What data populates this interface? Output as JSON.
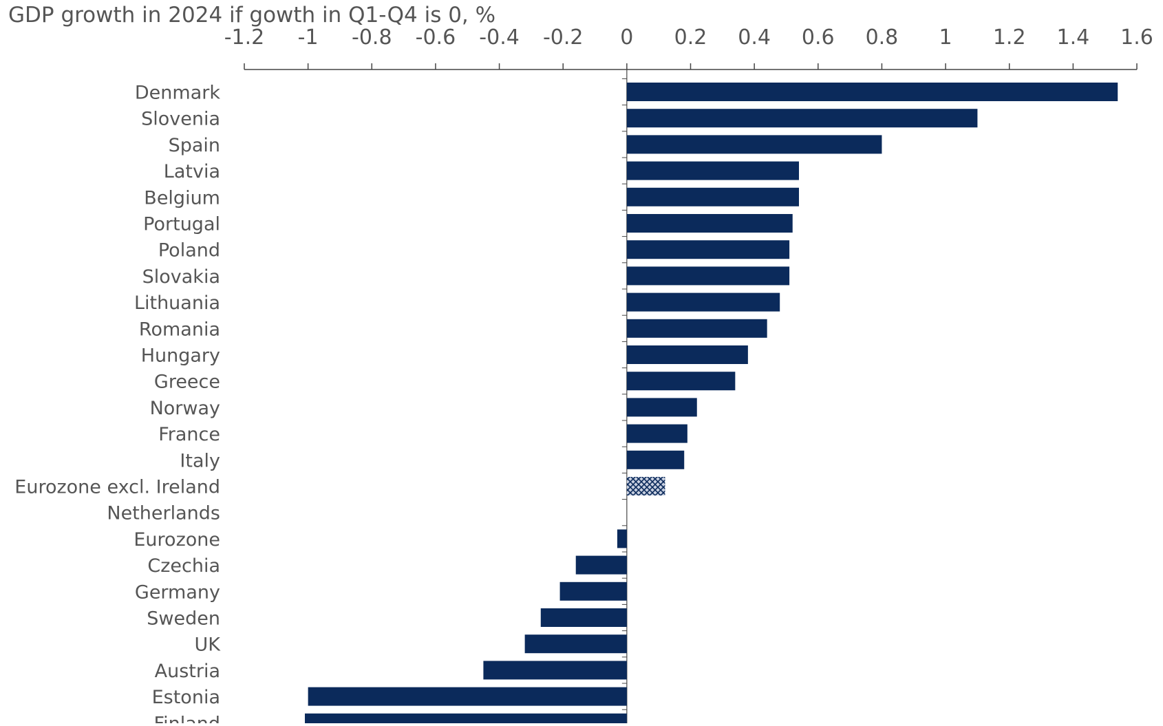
{
  "chart_data": {
    "type": "bar",
    "orientation": "horizontal",
    "title": "GDP growth in 2024 if gowth in Q1-Q4 is 0, %",
    "xlabel": "",
    "ylabel": "",
    "xlim": [
      -1.2,
      1.6
    ],
    "x_ticks": [
      "-1.2",
      "-1",
      "-0.8",
      "-0.6",
      "-0.4",
      "-0.2",
      "0",
      "0.2",
      "0.4",
      "0.6",
      "0.8",
      "1",
      "1.2",
      "1.4",
      "1.6"
    ],
    "x_axis_position": "top",
    "grid": false,
    "legend": "none",
    "categories": [
      "Denmark",
      "Slovenia",
      "Spain",
      "Latvia",
      "Belgium",
      "Portugal",
      "Poland",
      "Slovakia",
      "Lithuania",
      "Romania",
      "Hungary",
      "Greece",
      "Norway",
      "France",
      "Italy",
      "Eurozone excl. Ireland",
      "Netherlands",
      "Eurozone",
      "Czechia",
      "Germany",
      "Sweden",
      "UK",
      "Austria",
      "Estonia",
      "Finland"
    ],
    "values": [
      1.54,
      1.1,
      0.8,
      0.54,
      0.54,
      0.52,
      0.51,
      0.51,
      0.48,
      0.44,
      0.38,
      0.34,
      0.22,
      0.19,
      0.18,
      0.12,
      0.0,
      -0.03,
      -0.16,
      -0.21,
      -0.27,
      -0.32,
      -0.45,
      -1.0,
      -1.01
    ],
    "highlighted_category": "Eurozone excl. Ireland",
    "colors": {
      "bar": "#0b2a5b",
      "highlight_bar": "#0b2a5b",
      "highlight_pattern_light": "#c8d0e0",
      "axis": "#444444",
      "text": "#555555"
    }
  }
}
